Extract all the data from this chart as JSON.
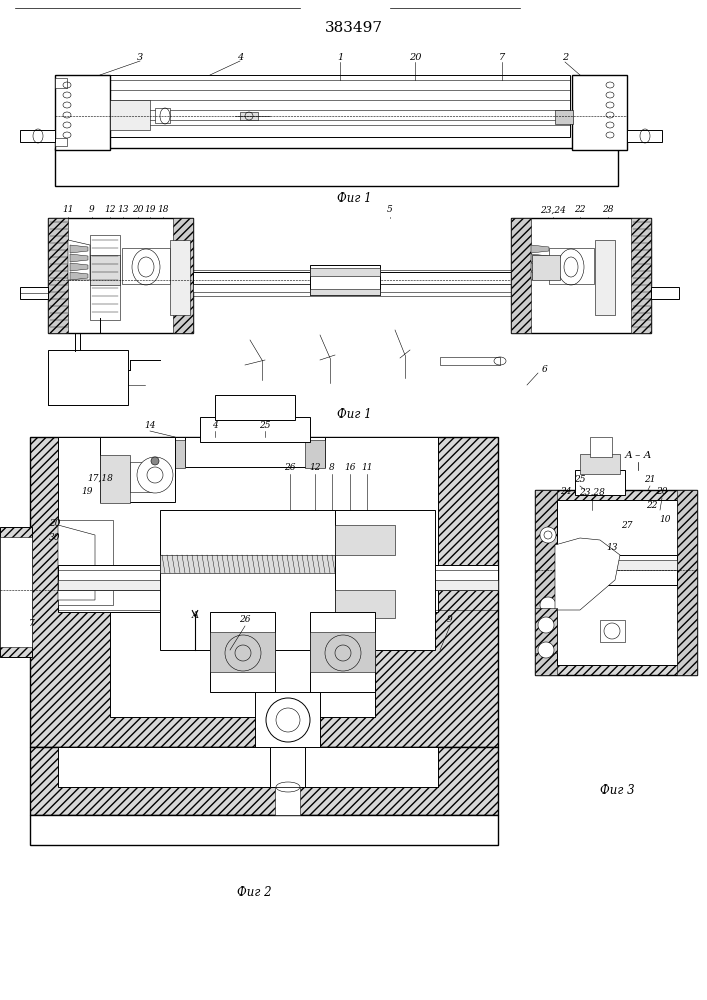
{
  "title": "383497",
  "bg_color": "#ffffff",
  "fig1_caption": "Фиг 1",
  "fig2_caption": "Фиг 2",
  "fig3_caption": "Фиг 3",
  "lw_thin": 0.4,
  "lw_med": 0.7,
  "lw_thick": 1.0
}
